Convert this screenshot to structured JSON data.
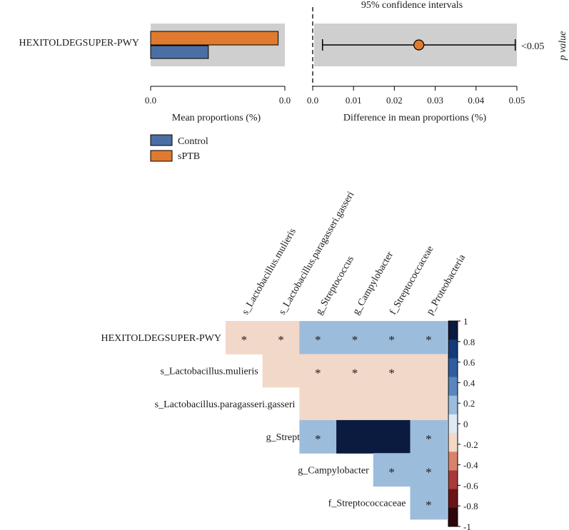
{
  "chart_data": [
    {
      "type": "bar",
      "title": "",
      "categories": [
        "HEXITOLDEGSUPER-PWY"
      ],
      "series": [
        {
          "name": "sPTB",
          "color": "#e07a2e",
          "values": [
            0.0095
          ]
        },
        {
          "name": "Control",
          "color": "#4a6fa5",
          "values": [
            0.0043
          ]
        }
      ],
      "xlabel": "Mean proportions (%)",
      "xlim": [
        0,
        0.01
      ],
      "xticks": [
        "0.0",
        "0.0"
      ],
      "legend": [
        "Control",
        "sPTB"
      ],
      "legend_position": "bottom-left"
    },
    {
      "type": "scatter",
      "title": "95% confidence intervals",
      "categories": [
        "HEXITOLDEGSUPER-PWY"
      ],
      "point": 0.026,
      "ci": [
        0.0024,
        0.0496
      ],
      "point_color": "#e07a2e",
      "xlabel": "Difference in mean proportions (%)",
      "xlim": [
        0,
        0.05
      ],
      "xticks": [
        "0.0",
        "0.01",
        "0.02",
        "0.03",
        "0.04",
        "0.05"
      ],
      "pvalue_label": "p value",
      "pvalue": "<0.05"
    },
    {
      "type": "heatmap",
      "title": "",
      "columns": [
        "s_Lactobacillus.mulieris",
        "s_Lactobacillus.paragasseri.gasseri",
        "g_Streptococcus",
        "g_Campylobacter",
        "f_Streptococcaceae",
        "p_Proteobacteria"
      ],
      "rows": [
        "HEXITOLDEGSUPER-PWY",
        "s_Lactobacillus.mulieris",
        "s_Lactobacillus.paragasseri.gasseri",
        "g_Streptococcus",
        "g_Campylobacter",
        "f_Streptococcaceae"
      ],
      "values": [
        [
          -0.1,
          -0.1,
          0.1,
          0.1,
          0.1,
          0.1
        ],
        [
          null,
          -0.1,
          -0.1,
          -0.1,
          -0.1,
          -0.1
        ],
        [
          null,
          null,
          -0.1,
          -0.1,
          -0.1,
          -0.1
        ],
        [
          null,
          null,
          0.1,
          1.0,
          1.0,
          0.1
        ],
        [
          null,
          null,
          null,
          null,
          0.1,
          0.1
        ],
        [
          null,
          null,
          null,
          null,
          null,
          0.1
        ]
      ],
      "significance": [
        [
          true,
          true,
          true,
          true,
          true,
          true
        ],
        [
          false,
          false,
          true,
          true,
          true,
          false
        ],
        [
          false,
          false,
          false,
          false,
          false,
          false
        ],
        [
          false,
          false,
          true,
          false,
          false,
          true
        ],
        [
          false,
          false,
          false,
          false,
          true,
          true
        ],
        [
          false,
          false,
          false,
          false,
          false,
          true
        ]
      ],
      "star": "*",
      "colorbar": {
        "range": [
          -1,
          1
        ],
        "ticks": [
          "1",
          "0.8",
          "0.6",
          "0.4",
          "0.2",
          "0",
          "-0.2",
          "-0.4",
          "-0.6",
          "-0.8",
          "-1"
        ],
        "colors": [
          "#0b1a3f",
          "#143a7a",
          "#2f5d9f",
          "#5a86bd",
          "#9cbcdc",
          "#dde9f4",
          "#f2d8c9",
          "#d9826b",
          "#a83a3a",
          "#6a1418",
          "#2e060a"
        ]
      }
    }
  ]
}
